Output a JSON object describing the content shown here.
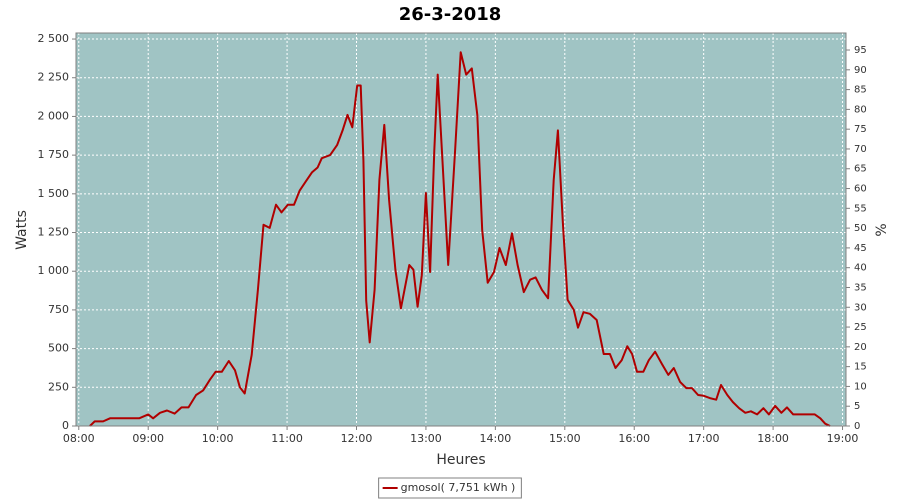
{
  "chart_data": {
    "type": "line",
    "title": "26-3-2018",
    "x_label": "Heures",
    "y_label": "Watts",
    "y2_label": "%",
    "x": [
      8.16,
      8.23,
      8.35,
      8.45,
      8.6,
      8.73,
      8.87,
      9.0,
      9.07,
      9.17,
      9.27,
      9.38,
      9.48,
      9.58,
      9.69,
      9.79,
      9.89,
      9.97,
      10.06,
      10.16,
      10.25,
      10.32,
      10.39,
      10.49,
      10.58,
      10.66,
      10.75,
      10.84,
      10.92,
      11.01,
      11.1,
      11.18,
      11.27,
      11.36,
      11.44,
      11.5,
      11.62,
      11.72,
      11.8,
      11.87,
      11.94,
      12.01,
      12.06,
      12.1,
      12.14,
      12.19,
      12.26,
      12.33,
      12.4,
      12.47,
      12.56,
      12.64,
      12.76,
      12.82,
      12.88,
      12.94,
      13.0,
      13.06,
      13.12,
      13.17,
      13.23,
      13.32,
      13.42,
      13.5,
      13.58,
      13.66,
      13.74,
      13.81,
      13.89,
      13.98,
      14.06,
      14.15,
      14.24,
      14.32,
      14.41,
      14.5,
      14.58,
      14.67,
      14.76,
      14.84,
      14.9,
      14.97,
      15.04,
      15.13,
      15.19,
      15.27,
      15.36,
      15.46,
      15.56,
      15.65,
      15.73,
      15.82,
      15.9,
      15.97,
      16.04,
      16.13,
      16.21,
      16.3,
      16.4,
      16.49,
      16.57,
      16.66,
      16.75,
      16.83,
      16.92,
      17.0,
      17.09,
      17.18,
      17.25,
      17.34,
      17.42,
      17.51,
      17.6,
      17.68,
      17.77,
      17.86,
      17.94,
      18.03,
      18.12,
      18.2,
      18.29,
      18.39,
      18.5,
      18.6,
      18.68,
      18.75,
      18.82
    ],
    "series": [
      {
        "name": "gmosol( 7,751 kWh )",
        "color": "#b00000",
        "values": [
          0,
          30,
          30,
          50,
          50,
          50,
          50,
          75,
          50,
          85,
          100,
          80,
          120,
          120,
          200,
          230,
          300,
          350,
          350,
          420,
          360,
          250,
          210,
          460,
          880,
          1300,
          1280,
          1430,
          1380,
          1430,
          1430,
          1520,
          1580,
          1640,
          1670,
          1730,
          1750,
          1815,
          1910,
          2010,
          1930,
          2200,
          2200,
          1720,
          810,
          540,
          880,
          1590,
          1945,
          1460,
          1010,
          760,
          1040,
          1010,
          770,
          975,
          1505,
          995,
          1780,
          2270,
          1780,
          1040,
          1780,
          2415,
          2270,
          2310,
          2010,
          1265,
          925,
          995,
          1150,
          1040,
          1245,
          1040,
          865,
          945,
          960,
          880,
          825,
          1590,
          1910,
          1330,
          815,
          750,
          635,
          735,
          725,
          685,
          465,
          465,
          375,
          425,
          515,
          465,
          350,
          350,
          425,
          480,
          400,
          330,
          375,
          285,
          245,
          245,
          200,
          195,
          180,
          170,
          265,
          200,
          155,
          115,
          85,
          95,
          75,
          115,
          75,
          130,
          85,
          120,
          75,
          75,
          75,
          75,
          50,
          15,
          0
        ]
      }
    ],
    "xlim": [
      7.96,
      19.05
    ],
    "xticks": [
      {
        "value": 8,
        "label": "08:00"
      },
      {
        "value": 9,
        "label": "09:00"
      },
      {
        "value": 10,
        "label": "10:00"
      },
      {
        "value": 11,
        "label": "11:00"
      },
      {
        "value": 12,
        "label": "12:00"
      },
      {
        "value": 13,
        "label": "13:00"
      },
      {
        "value": 14,
        "label": "14:00"
      },
      {
        "value": 15,
        "label": "15:00"
      },
      {
        "value": 16,
        "label": "16:00"
      },
      {
        "value": 17,
        "label": "17:00"
      },
      {
        "value": 18,
        "label": "18:00"
      },
      {
        "value": 19,
        "label": "19:00"
      }
    ],
    "ylim": [
      0,
      2539
    ],
    "yticks": [
      0,
      250,
      500,
      750,
      {
        "value": 1000,
        "label": "1 000"
      },
      {
        "value": 1250,
        "label": "1 250"
      },
      {
        "value": 1500,
        "label": "1 500"
      },
      {
        "value": 1750,
        "label": "1 750"
      },
      {
        "value": 2000,
        "label": "2 000"
      },
      {
        "value": 2250,
        "label": "2 250"
      },
      {
        "value": 2500,
        "label": "2 500"
      }
    ],
    "y2lim": [
      0,
      99.3
    ],
    "y2ticks": [
      0,
      5,
      10,
      15,
      20,
      25,
      30,
      35,
      40,
      45,
      50,
      55,
      60,
      65,
      70,
      75,
      80,
      85,
      90,
      95
    ],
    "grid": true,
    "legend": "bottom"
  }
}
